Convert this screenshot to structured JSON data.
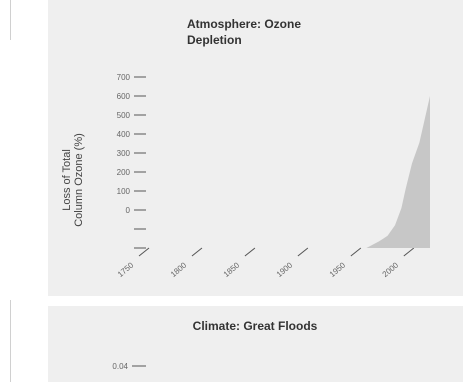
{
  "chart_data": [
    {
      "type": "area",
      "title_lines": [
        "Atmosphere:  Ozone",
        "Depletion"
      ],
      "ylabel_lines": [
        "Loss of Total",
        "Column Ozone (%)"
      ],
      "y_ticks": [
        {
          "label": "700",
          "value": 700
        },
        {
          "label": "600",
          "value": 600
        },
        {
          "label": "500",
          "value": 500
        },
        {
          "label": "400",
          "value": 400
        },
        {
          "label": "300",
          "value": 300
        },
        {
          "label": "200",
          "value": 200
        },
        {
          "label": "100",
          "value": 100
        },
        {
          "label": "0",
          "value": 0
        },
        {
          "label": "",
          "value": -100
        },
        {
          "label": "",
          "value": -200
        }
      ],
      "ylim": [
        -200,
        700
      ],
      "x_ticks": [
        {
          "label": "1750",
          "value": 1750
        },
        {
          "label": "1800",
          "value": 1800
        },
        {
          "label": "1850",
          "value": 1850
        },
        {
          "label": "1900",
          "value": 1900
        },
        {
          "label": "1950",
          "value": 1950
        },
        {
          "label": "2000",
          "value": 2000
        }
      ],
      "xlim": [
        1750,
        2020
      ],
      "series": [
        {
          "x": [
            1960,
            1972,
            1980,
            1987,
            1993,
            1997,
            2003,
            2010,
            2020
          ],
          "y": [
            -200,
            -165,
            -135,
            -80,
            10,
            110,
            245,
            355,
            600
          ]
        }
      ],
      "fill_color": "#c7c7c7",
      "background": "#efefef",
      "grid": false,
      "legend": "none"
    },
    {
      "type": "area",
      "title": "Climate: Great Floods",
      "y_ticks": [
        {
          "label": "0.04",
          "value": 0.04
        }
      ],
      "background": "#efefef",
      "grid": false,
      "legend": "none"
    }
  ]
}
